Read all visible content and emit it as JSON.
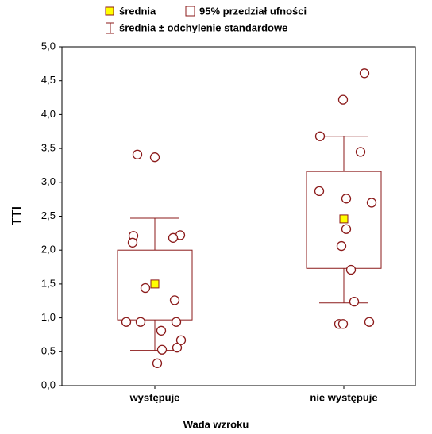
{
  "chart_data": {
    "type": "box",
    "x_label": "Wada wzroku",
    "y_label": "TTI",
    "categories": [
      "występuje",
      "nie występuje"
    ],
    "color": "#8b1a1a",
    "mean": {
      "name": "średnia",
      "color": "#ffff00",
      "values": [
        1.5,
        2.46
      ]
    },
    "ci": {
      "name": "95% przedział ufności",
      "low": [
        0.97,
        1.73
      ],
      "high": [
        2.0,
        3.16
      ]
    },
    "sd": {
      "name": "średnia ± odchylenie standardowe",
      "low": [
        0.52,
        1.22
      ],
      "high": [
        2.47,
        3.68
      ]
    },
    "points": [
      [
        3.41,
        3.37,
        2.21,
        2.22,
        2.11,
        2.18,
        1.44,
        1.26,
        0.94,
        0.94,
        0.94,
        0.81,
        0.67,
        0.56,
        0.53,
        0.33
      ],
      [
        4.61,
        4.22,
        3.68,
        3.45,
        2.87,
        2.76,
        2.7,
        2.31,
        2.06,
        1.71,
        1.24,
        0.91,
        0.91,
        0.94
      ]
    ],
    "ylim": [
      0,
      5
    ],
    "yticks": [
      {
        "value": 0,
        "label": "0,0"
      },
      {
        "value": 0.5,
        "label": "0,5"
      },
      {
        "value": 1,
        "label": "1,0"
      },
      {
        "value": 1.5,
        "label": "1,5"
      },
      {
        "value": 2,
        "label": "2,0"
      },
      {
        "value": 2.5,
        "label": "2,5"
      },
      {
        "value": 3,
        "label": "3,0"
      },
      {
        "value": 3.5,
        "label": "3,5"
      },
      {
        "value": 4,
        "label": "4,0"
      },
      {
        "value": 4.5,
        "label": "4,5"
      },
      {
        "value": 5,
        "label": "5,0"
      }
    ]
  }
}
